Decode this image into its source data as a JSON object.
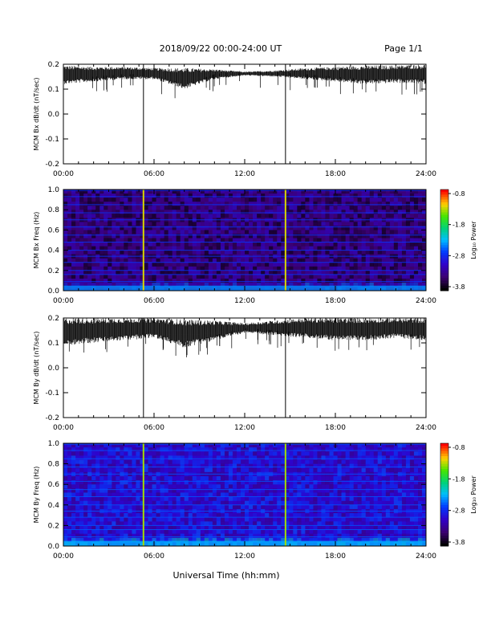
{
  "header": {
    "title": "2018/09/22  00:00-24:00 UT",
    "page": "Page 1/1"
  },
  "footer": {
    "xlabel": "Universal Time (hh:mm)"
  },
  "colorbar": {
    "label": "Log₁₀ Power",
    "ticks": [
      "-0.8",
      "-1.8",
      "-2.8",
      "-3.8"
    ]
  },
  "chart_data": [
    {
      "id": "bx-timeseries",
      "type": "line",
      "ylabel": "MCM Bx dB/dt (nT/sec)",
      "xlim": [
        0,
        24
      ],
      "ylim": [
        -0.2,
        0.2
      ],
      "x_ticks": [
        "00:00",
        "06:00",
        "12:00",
        "18:00",
        "24:00"
      ],
      "y_ticks": [
        "0.2",
        "0.1",
        "0.0",
        "-0.1",
        "-0.2"
      ],
      "envelope_hours": [
        0,
        2,
        4,
        6,
        8,
        10,
        12,
        14,
        16,
        18,
        20,
        22,
        24
      ],
      "envelope_upper": [
        0.195,
        0.19,
        0.19,
        0.185,
        0.185,
        0.18,
        0.17,
        0.175,
        0.185,
        0.19,
        0.195,
        0.195,
        0.2
      ],
      "envelope_lower": [
        0.12,
        0.13,
        0.14,
        0.14,
        0.1,
        0.14,
        0.155,
        0.15,
        0.14,
        0.13,
        0.12,
        0.125,
        0.12
      ],
      "spike_hours": [
        5.3,
        14.7
      ],
      "spike_min": -0.2
    },
    {
      "id": "bx-spectrogram",
      "type": "heatmap",
      "ylabel": "MCM Bx Freq (Hz)",
      "xlim": [
        0,
        24
      ],
      "ylim": [
        0,
        1.0
      ],
      "x_ticks": [
        "00:00",
        "06:00",
        "12:00",
        "18:00",
        "24:00"
      ],
      "y_ticks": [
        "1.0",
        "0.8",
        "0.6",
        "0.4",
        "0.2",
        "0.0"
      ],
      "clim": [
        -3.8,
        -0.8
      ],
      "background_log_power": -3.4,
      "harmonic_lines_hz": [
        0.04,
        0.09,
        0.16,
        0.2,
        0.28,
        0.34,
        0.4,
        0.48,
        0.55,
        0.63,
        0.7,
        0.77,
        0.85,
        0.93,
        0.99
      ],
      "harmonic_log_power": -2.7,
      "spike_hours": [
        5.3,
        14.7
      ],
      "spike_log_power": -1.3
    },
    {
      "id": "by-timeseries",
      "type": "line",
      "ylabel": "MCM By dB/dt (nT/sec)",
      "xlim": [
        0,
        24
      ],
      "ylim": [
        -0.2,
        0.2
      ],
      "x_ticks": [
        "00:00",
        "06:00",
        "12:00",
        "18:00",
        "24:00"
      ],
      "y_ticks": [
        "0.2",
        "0.1",
        "0.0",
        "-0.1",
        "-0.2"
      ],
      "envelope_hours": [
        0,
        2,
        4,
        6,
        8,
        10,
        12,
        14,
        16,
        18,
        20,
        22,
        24
      ],
      "envelope_upper": [
        0.2,
        0.2,
        0.2,
        0.2,
        0.195,
        0.19,
        0.18,
        0.19,
        0.2,
        0.2,
        0.2,
        0.2,
        0.2
      ],
      "envelope_lower": [
        0.09,
        0.1,
        0.11,
        0.12,
        0.08,
        0.11,
        0.14,
        0.13,
        0.12,
        0.11,
        0.11,
        0.12,
        0.11
      ],
      "spike_hours": [
        5.3,
        14.7
      ],
      "spike_min": -0.2
    },
    {
      "id": "by-spectrogram",
      "type": "heatmap",
      "ylabel": "MCM By Freq (Hz)",
      "xlim": [
        0,
        24
      ],
      "ylim": [
        0,
        1.0
      ],
      "x_ticks": [
        "00:00",
        "06:00",
        "12:00",
        "18:00",
        "24:00"
      ],
      "y_ticks": [
        "1.0",
        "0.8",
        "0.6",
        "0.4",
        "0.2",
        "0.0"
      ],
      "clim": [
        -3.8,
        -0.8
      ],
      "background_log_power": -3.0,
      "harmonic_lines_hz": [
        0.04,
        0.09,
        0.16,
        0.2,
        0.28,
        0.34,
        0.4,
        0.48,
        0.55,
        0.63,
        0.7,
        0.77,
        0.85,
        0.93,
        0.99
      ],
      "harmonic_log_power": -2.6,
      "spike_hours": [
        5.3,
        14.7
      ],
      "spike_log_power": -1.4
    }
  ]
}
